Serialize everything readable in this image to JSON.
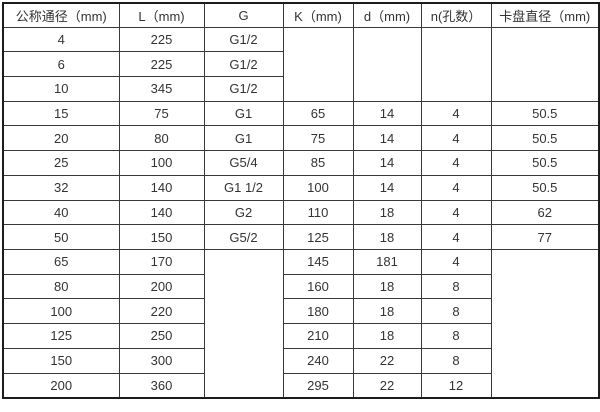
{
  "table": {
    "title_semantic": "dimension-spec-table",
    "headers": [
      "公称通径（mm)",
      "L（mm)",
      "G",
      "K（mm)",
      "d（mm)",
      "n(孔数）",
      "卡盘直径（mm)"
    ],
    "rows": [
      {
        "cells": [
          {
            "v": "4"
          },
          {
            "v": "225"
          },
          {
            "v": "G1/2"
          },
          {
            "v": "",
            "rowspan": 3
          },
          {
            "v": "",
            "rowspan": 3
          },
          {
            "v": "",
            "rowspan": 3
          },
          {
            "v": "",
            "rowspan": 3
          }
        ]
      },
      {
        "cells": [
          {
            "v": "6"
          },
          {
            "v": "225"
          },
          {
            "v": "G1/2"
          }
        ]
      },
      {
        "cells": [
          {
            "v": "10"
          },
          {
            "v": "345"
          },
          {
            "v": "G1/2"
          }
        ]
      },
      {
        "cells": [
          {
            "v": "15"
          },
          {
            "v": "75"
          },
          {
            "v": "G1"
          },
          {
            "v": "65"
          },
          {
            "v": "14"
          },
          {
            "v": "4"
          },
          {
            "v": "50.5"
          }
        ]
      },
      {
        "cells": [
          {
            "v": "20"
          },
          {
            "v": "80"
          },
          {
            "v": "G1"
          },
          {
            "v": "75"
          },
          {
            "v": "14"
          },
          {
            "v": "4"
          },
          {
            "v": "50.5"
          }
        ]
      },
      {
        "cells": [
          {
            "v": "25"
          },
          {
            "v": "100"
          },
          {
            "v": "G5/4"
          },
          {
            "v": "85"
          },
          {
            "v": "14"
          },
          {
            "v": "4"
          },
          {
            "v": "50.5"
          }
        ]
      },
      {
        "cells": [
          {
            "v": "32"
          },
          {
            "v": "140"
          },
          {
            "v": "G1 1/2"
          },
          {
            "v": "100"
          },
          {
            "v": "14"
          },
          {
            "v": "4"
          },
          {
            "v": "50.5"
          }
        ]
      },
      {
        "cells": [
          {
            "v": "40"
          },
          {
            "v": "140"
          },
          {
            "v": "G2"
          },
          {
            "v": "110"
          },
          {
            "v": "18"
          },
          {
            "v": "4"
          },
          {
            "v": "62"
          }
        ]
      },
      {
        "cells": [
          {
            "v": "50"
          },
          {
            "v": "150"
          },
          {
            "v": "G5/2"
          },
          {
            "v": "125"
          },
          {
            "v": "18"
          },
          {
            "v": "4"
          },
          {
            "v": "77"
          }
        ]
      },
      {
        "cells": [
          {
            "v": "65"
          },
          {
            "v": "170"
          },
          {
            "v": "",
            "rowspan": 6
          },
          {
            "v": "145"
          },
          {
            "v": "181"
          },
          {
            "v": "4"
          },
          {
            "v": "",
            "rowspan": 6
          }
        ]
      },
      {
        "cells": [
          {
            "v": "80"
          },
          {
            "v": "200"
          },
          {
            "v": "160"
          },
          {
            "v": "18"
          },
          {
            "v": "8"
          }
        ]
      },
      {
        "cells": [
          {
            "v": "100"
          },
          {
            "v": "220"
          },
          {
            "v": "180"
          },
          {
            "v": "18"
          },
          {
            "v": "8"
          }
        ]
      },
      {
        "cells": [
          {
            "v": "125"
          },
          {
            "v": "250"
          },
          {
            "v": "210"
          },
          {
            "v": "18"
          },
          {
            "v": "8"
          }
        ]
      },
      {
        "cells": [
          {
            "v": "150"
          },
          {
            "v": "300"
          },
          {
            "v": "240"
          },
          {
            "v": "22"
          },
          {
            "v": "8"
          }
        ]
      },
      {
        "cells": [
          {
            "v": "200"
          },
          {
            "v": "360"
          },
          {
            "v": "295"
          },
          {
            "v": "22"
          },
          {
            "v": "12"
          }
        ]
      }
    ]
  },
  "colors": {
    "outer_border": "#1c1c1c",
    "inner_border": "#3a3a3a",
    "text": "#333333",
    "background": "#ffffff"
  }
}
